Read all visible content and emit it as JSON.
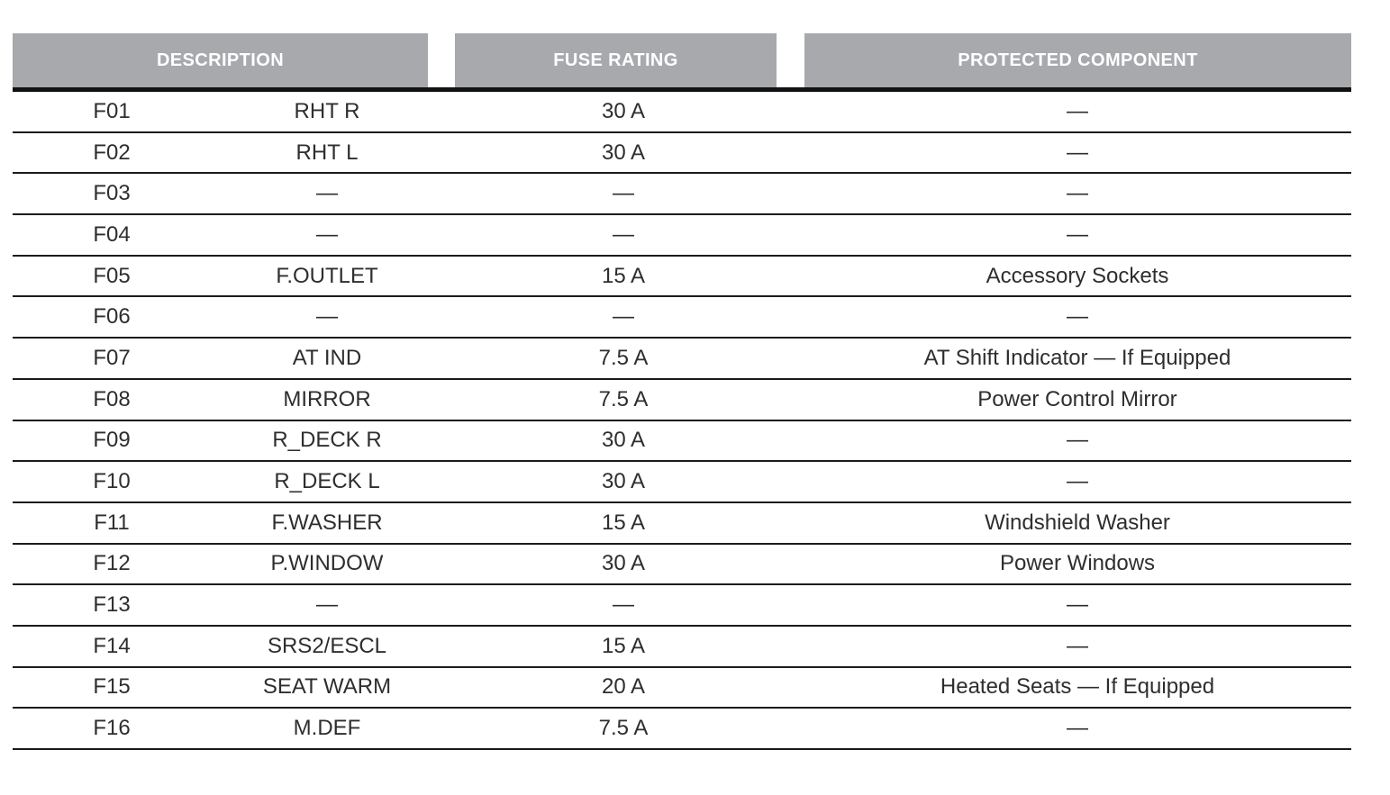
{
  "table": {
    "headers": {
      "description": "DESCRIPTION",
      "fuse_rating": "FUSE RATING",
      "protected_component": "PROTECTED COMPONENT"
    },
    "rows": [
      {
        "id": "F01",
        "name": "RHT R",
        "rating": "30 A",
        "protected": "—"
      },
      {
        "id": "F02",
        "name": "RHT L",
        "rating": "30 A",
        "protected": "—"
      },
      {
        "id": "F03",
        "name": "—",
        "rating": "—",
        "protected": "—"
      },
      {
        "id": "F04",
        "name": "—",
        "rating": "—",
        "protected": "—"
      },
      {
        "id": "F05",
        "name": "F.OUTLET",
        "rating": "15 A",
        "protected": "Accessory Sockets"
      },
      {
        "id": "F06",
        "name": "—",
        "rating": "—",
        "protected": "—"
      },
      {
        "id": "F07",
        "name": "AT IND",
        "rating": "7.5 A",
        "protected": "AT Shift Indicator — If Equipped"
      },
      {
        "id": "F08",
        "name": "MIRROR",
        "rating": "7.5 A",
        "protected": "Power Control Mirror"
      },
      {
        "id": "F09",
        "name": "R_DECK R",
        "rating": "30 A",
        "protected": "—"
      },
      {
        "id": "F10",
        "name": "R_DECK L",
        "rating": "30 A",
        "protected": "—"
      },
      {
        "id": "F11",
        "name": "F.WASHER",
        "rating": "15 A",
        "protected": "Windshield Washer"
      },
      {
        "id": "F12",
        "name": "P.WINDOW",
        "rating": "30 A",
        "protected": "Power Windows"
      },
      {
        "id": "F13",
        "name": "—",
        "rating": "—",
        "protected": "—"
      },
      {
        "id": "F14",
        "name": "SRS2/ESCL",
        "rating": "15 A",
        "protected": "—"
      },
      {
        "id": "F15",
        "name": "SEAT WARM",
        "rating": "20 A",
        "protected": "Heated Seats — If Equipped"
      },
      {
        "id": "F16",
        "name": "M.DEF",
        "rating": "7.5 A",
        "protected": "—"
      }
    ]
  },
  "colors": {
    "header_background": "#a7a9ac",
    "header_text": "#ffffff",
    "row_text": "#2e2e2e",
    "rule": "#111111",
    "row_divider": "#1b1b1b",
    "page_background": "#ffffff"
  }
}
